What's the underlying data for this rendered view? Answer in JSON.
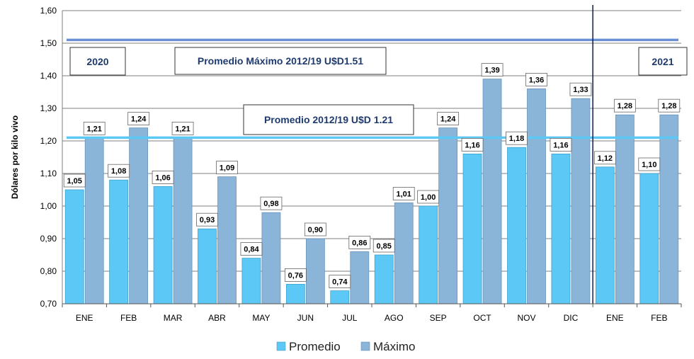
{
  "chart_data": {
    "type": "bar",
    "ylabel": "Dólares por kilo vivo",
    "ylim": [
      0.7,
      1.6
    ],
    "yticks": [
      "0,70",
      "0,80",
      "0,90",
      "1,00",
      "1,10",
      "1,20",
      "1,30",
      "1,40",
      "1,50",
      "1,60"
    ],
    "grid": true,
    "categories": [
      "ENE",
      "FEB",
      "MAR",
      "ABR",
      "MAY",
      "JUN",
      "JUL",
      "AGO",
      "SEP",
      "OCT",
      "NOV",
      "DIC",
      "ENE",
      "FEB"
    ],
    "series": [
      {
        "name": "Promedio",
        "color": "#5bc8f5",
        "values": [
          1.05,
          1.08,
          1.06,
          0.93,
          0.84,
          0.76,
          0.74,
          0.85,
          1.0,
          1.16,
          1.18,
          1.16,
          1.12,
          1.1
        ],
        "labels": [
          "1,05",
          "1,08",
          "1,06",
          "0,93",
          "0,84",
          "0,76",
          "0,74",
          "0,85",
          "1,00",
          "1,16",
          "1,18",
          "1,16",
          "1,12",
          "1,10"
        ]
      },
      {
        "name": "Máximo",
        "color": "#8ab4d8",
        "values": [
          1.21,
          1.24,
          1.21,
          1.09,
          0.98,
          0.9,
          0.86,
          1.01,
          1.24,
          1.39,
          1.36,
          1.33,
          1.28,
          1.28
        ],
        "labels": [
          "1,21",
          "1,24",
          "1,21",
          "1,09",
          "0,98",
          "0,90",
          "0,86",
          "1,01",
          "1,24",
          "1,39",
          "1,36",
          "1,33",
          "1,28",
          "1,28"
        ]
      }
    ],
    "reference_lines": [
      {
        "value": 1.51,
        "color": "#6b8fd4",
        "label": "Promedio Máximo 2012/19 U$D1.51"
      },
      {
        "value": 1.21,
        "color": "#5bc8f5",
        "label": "Promedio 2012/19 U$D 1.21"
      }
    ],
    "year_labels": [
      "2020",
      "2021"
    ],
    "divider_after_index": 11,
    "legend_placement": "bottom"
  }
}
